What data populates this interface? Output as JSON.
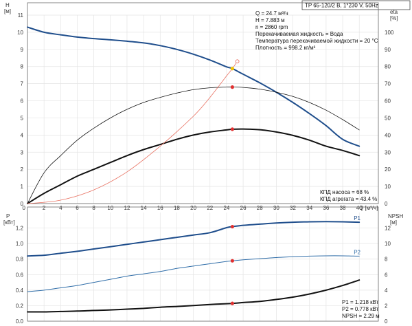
{
  "header": {
    "title": "TP 65-120/2 B, 1*230 V, 50Hz"
  },
  "info_top": [
    "Q = 24.7 м³/ч",
    "H = 7.883 м",
    "n = 2860 rpm",
    "Перекачиваемая жидкость = Вода",
    "Температура перекачиваемой жидкости = 20 °C",
    "Плотность = 998.2 кг/м³"
  ],
  "info_eff": [
    "КПД насоса = 68 %",
    "КПД агрегата = 43.4 %"
  ],
  "info_bottom": [
    "P1 = 1.218 кВт",
    "P2 = 0.778 кВт",
    "NPSH = 2.29 м"
  ],
  "colors": {
    "blue": "#1f4e8c",
    "lightblue": "#2f6da8",
    "black": "#111111",
    "red": "#e03030",
    "op": "#f2c200",
    "grid": "#e4e4e4"
  },
  "chart_data": [
    {
      "type": "line",
      "name": "top",
      "xlabel": "Q [м³/ч]",
      "ylabel_left": "H\n[м]",
      "ylabel_right": "eta\n[%]",
      "xlim": [
        0,
        40
      ],
      "ylim": [
        0,
        11
      ],
      "ylim_right": [
        0,
        110
      ],
      "x_ticks": [
        0,
        2,
        4,
        6,
        8,
        10,
        12,
        14,
        16,
        18,
        20,
        22,
        24,
        26,
        28,
        30,
        32,
        34,
        36,
        38,
        40
      ],
      "y_ticks": [
        0,
        1,
        2,
        3,
        4,
        5,
        6,
        7,
        8,
        9,
        10,
        11
      ],
      "y_ticks_right": [
        0,
        10,
        20,
        30,
        40,
        50,
        60,
        70,
        80,
        90,
        100
      ],
      "grid": true,
      "series": [
        {
          "role": "head",
          "color": "#1f4e8c",
          "width": 2,
          "x": [
            0,
            2,
            4,
            6,
            8,
            10,
            12,
            14,
            16,
            18,
            20,
            22,
            24,
            24.7,
            26,
            28,
            30,
            32,
            34,
            36,
            38,
            40
          ],
          "y": [
            10.3,
            10.0,
            9.85,
            9.72,
            9.63,
            9.56,
            9.48,
            9.38,
            9.22,
            9.0,
            8.72,
            8.38,
            7.98,
            7.88,
            7.55,
            7.05,
            6.5,
            5.9,
            5.25,
            4.55,
            3.75,
            3.35
          ]
        },
        {
          "role": "pump_eff",
          "axis": "right",
          "color": "#111111",
          "width": 0.8,
          "x": [
            0,
            2,
            4,
            6,
            8,
            10,
            12,
            14,
            16,
            18,
            20,
            22,
            24,
            24.7,
            26,
            28,
            30,
            32,
            34,
            36,
            38,
            40
          ],
          "y": [
            0,
            18,
            28,
            37,
            44,
            50,
            55,
            59,
            62,
            64.5,
            66.5,
            67.6,
            68,
            68,
            67.8,
            66.8,
            65,
            62.5,
            59,
            54.5,
            49,
            43
          ]
        },
        {
          "role": "unit_eff",
          "axis": "right",
          "color": "#111111",
          "width": 2,
          "x": [
            0,
            2,
            4,
            6,
            8,
            10,
            12,
            14,
            16,
            18,
            20,
            22,
            24,
            24.7,
            26,
            28,
            30,
            32,
            34,
            36,
            38,
            40
          ],
          "y": [
            0,
            6,
            11,
            16,
            20,
            24,
            28,
            31.5,
            34.5,
            37.5,
            40,
            41.8,
            43,
            43.4,
            43.5,
            43.1,
            41.8,
            39.8,
            37,
            33.5,
            31,
            28
          ]
        },
        {
          "role": "system",
          "color": "#e87060",
          "width": 0.8,
          "x": [
            0,
            4,
            8,
            12,
            16,
            20,
            22,
            24,
            24.7,
            25.3
          ],
          "y": [
            0,
            0.2,
            0.8,
            1.85,
            3.35,
            5.1,
            6.2,
            7.45,
            7.88,
            8.3
          ]
        }
      ],
      "markers": [
        {
          "x": 24.7,
          "y": 7.88,
          "color": "#f2c200"
        },
        {
          "x": 24.7,
          "y": 68,
          "axis": "right",
          "color": "#e03030"
        },
        {
          "x": 24.7,
          "y": 43.4,
          "axis": "right",
          "color": "#e03030"
        }
      ],
      "open_marker": {
        "x": 25.3,
        "y": 8.3,
        "color": "#e87060"
      }
    },
    {
      "type": "line",
      "name": "bottom",
      "ylabel_left": "P\n[кВт]",
      "ylabel_right": "NPSH\n[м]",
      "xlim": [
        0,
        40
      ],
      "ylim": [
        0,
        1.4
      ],
      "ylim_right": [
        0,
        14
      ],
      "y_ticks": [
        0,
        0.2,
        0.4,
        0.6,
        0.8,
        1.0,
        1.2
      ],
      "y_ticks_right": [
        0,
        2,
        4,
        6,
        8,
        10,
        12
      ],
      "grid": true,
      "series": [
        {
          "role": "P1",
          "name": "P1",
          "color": "#1f4e8c",
          "width": 2,
          "x": [
            0,
            2,
            4,
            6,
            8,
            10,
            12,
            14,
            16,
            18,
            20,
            22,
            24,
            24.7,
            26,
            28,
            30,
            32,
            34,
            36,
            38,
            40
          ],
          "y": [
            0.84,
            0.85,
            0.875,
            0.9,
            0.93,
            0.96,
            0.99,
            1.02,
            1.05,
            1.08,
            1.11,
            1.14,
            1.205,
            1.218,
            1.235,
            1.25,
            1.265,
            1.275,
            1.28,
            1.282,
            1.28,
            1.275
          ]
        },
        {
          "role": "P2",
          "name": "P2",
          "color": "#2f6da8",
          "width": 1,
          "x": [
            0,
            2,
            4,
            6,
            8,
            10,
            12,
            14,
            16,
            18,
            20,
            22,
            24,
            24.7,
            26,
            28,
            30,
            32,
            34,
            36,
            38,
            40
          ],
          "y": [
            0.38,
            0.4,
            0.43,
            0.46,
            0.5,
            0.54,
            0.58,
            0.61,
            0.64,
            0.68,
            0.71,
            0.74,
            0.77,
            0.778,
            0.79,
            0.805,
            0.82,
            0.83,
            0.838,
            0.842,
            0.842,
            0.838
          ]
        },
        {
          "role": "NPSH",
          "axis": "right",
          "color": "#111111",
          "width": 2,
          "x": [
            0,
            2,
            4,
            6,
            8,
            10,
            12,
            14,
            16,
            18,
            20,
            22,
            24,
            24.7,
            26,
            28,
            30,
            32,
            34,
            36,
            38,
            40
          ],
          "y": [
            1.2,
            1.2,
            1.25,
            1.3,
            1.38,
            1.45,
            1.55,
            1.65,
            1.8,
            1.9,
            2.02,
            2.15,
            2.25,
            2.29,
            2.4,
            2.55,
            2.8,
            3.1,
            3.5,
            4.0,
            4.6,
            5.3
          ]
        }
      ],
      "markers": [
        {
          "x": 24.7,
          "y": 1.218,
          "color": "#e03030"
        },
        {
          "x": 24.7,
          "y": 0.778,
          "color": "#e03030"
        },
        {
          "x": 24.7,
          "y": 2.29,
          "axis": "right",
          "color": "#e03030"
        }
      ]
    }
  ]
}
